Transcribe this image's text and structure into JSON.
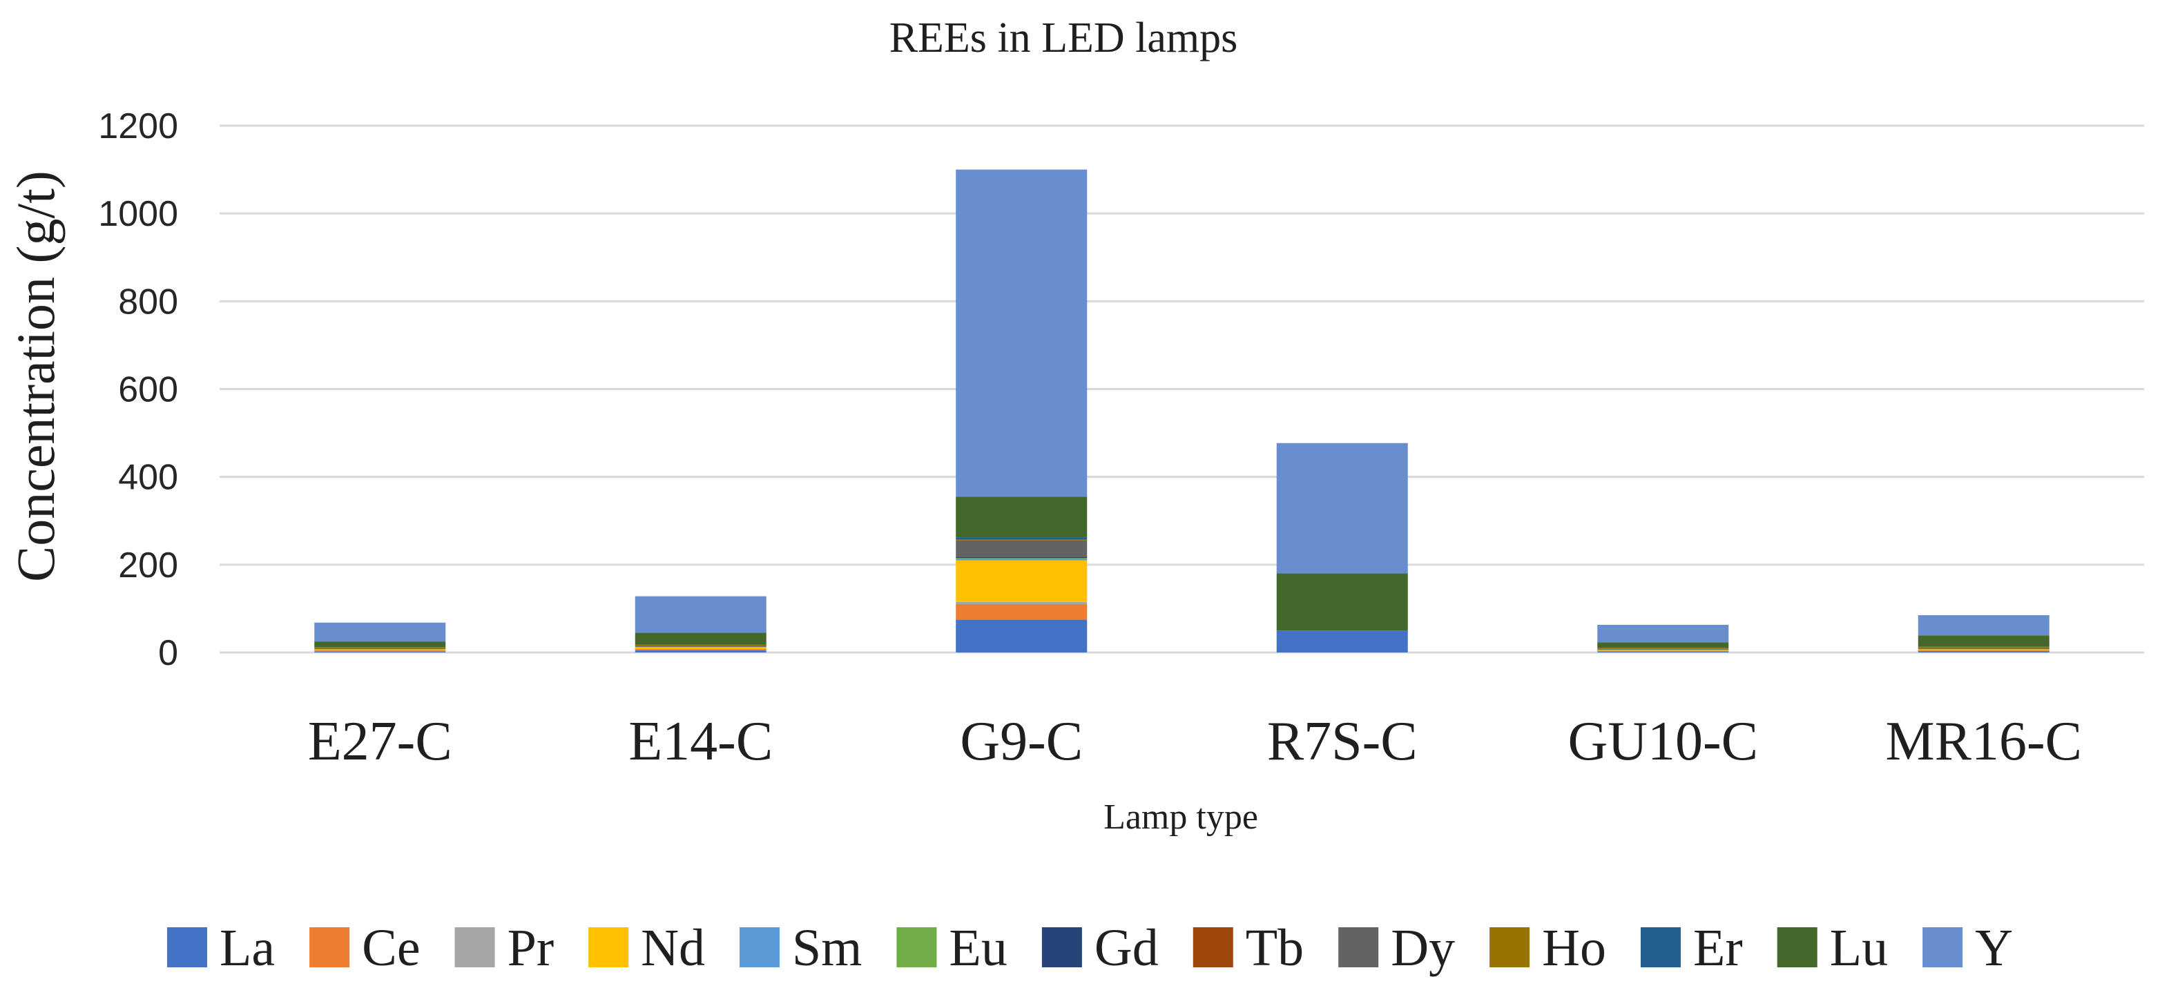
{
  "chart_data": {
    "type": "bar",
    "stacked": true,
    "title": "REEs in LED lamps",
    "xlabel": "Lamp type",
    "ylabel": "Concentration  (g/t)",
    "ylim": [
      0,
      1200
    ],
    "yticks": [
      0,
      200,
      400,
      600,
      800,
      1000,
      1200
    ],
    "ytick_labels": [
      "0",
      "200",
      "400",
      "600",
      "800",
      "1000",
      "1200"
    ],
    "grid": true,
    "legend_position": "bottom",
    "categories": [
      "E27-C",
      "E14-C",
      "G9-C",
      "R7S-C",
      "GU10-C",
      "MR16-C"
    ],
    "series": [
      {
        "name": "La",
        "color": "#4472C4",
        "values": [
          2,
          5,
          75,
          50,
          2,
          3
        ]
      },
      {
        "name": "Ce",
        "color": "#ED7D31",
        "values": [
          3,
          3,
          35,
          0,
          2,
          2
        ]
      },
      {
        "name": "Pr",
        "color": "#A5A5A5",
        "values": [
          0,
          0,
          5,
          0,
          0,
          0
        ]
      },
      {
        "name": "Nd",
        "color": "#FFC000",
        "values": [
          2,
          4,
          95,
          0,
          2,
          2
        ]
      },
      {
        "name": "Sm",
        "color": "#5B9BD5",
        "values": [
          0,
          0,
          3,
          0,
          0,
          0
        ]
      },
      {
        "name": "Eu",
        "color": "#70AD47",
        "values": [
          1,
          1,
          2,
          0,
          1,
          1
        ]
      },
      {
        "name": "Gd",
        "color": "#264478",
        "values": [
          1,
          1,
          3,
          0,
          1,
          1
        ]
      },
      {
        "name": "Tb",
        "color": "#9E480E",
        "values": [
          1,
          1,
          2,
          0,
          1,
          1
        ]
      },
      {
        "name": "Dy",
        "color": "#636363",
        "values": [
          0,
          0,
          35,
          0,
          0,
          0
        ]
      },
      {
        "name": "Ho",
        "color": "#997300",
        "values": [
          2,
          3,
          2,
          0,
          2,
          3
        ]
      },
      {
        "name": "Er",
        "color": "#255E91",
        "values": [
          0,
          0,
          5,
          0,
          0,
          0
        ]
      },
      {
        "name": "Lu",
        "color": "#43682B",
        "values": [
          13,
          27,
          93,
          130,
          12,
          26
        ]
      },
      {
        "name": "Y",
        "color": "#698ED0",
        "values": [
          43,
          83,
          745,
          297,
          40,
          46
        ]
      }
    ]
  }
}
